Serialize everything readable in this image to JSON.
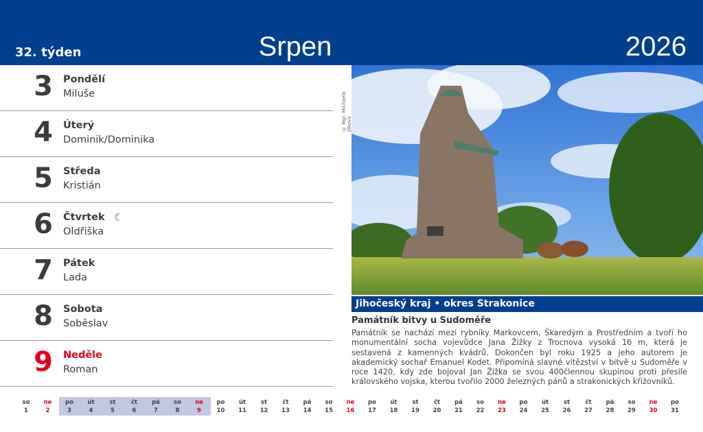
{
  "header": {
    "week": "32. týden",
    "month": "Srpen",
    "year": "2026"
  },
  "days": [
    {
      "num": "3",
      "name": "Pondělí",
      "nameday": "Miluše"
    },
    {
      "num": "4",
      "name": "Úterý",
      "nameday": "Dominik/Dominika"
    },
    {
      "num": "5",
      "name": "Středa",
      "nameday": "Kristián"
    },
    {
      "num": "6",
      "name": "Čtvrtek",
      "nameday": "Oldřiška",
      "moon": "☾"
    },
    {
      "num": "7",
      "name": "Pátek",
      "nameday": "Lada"
    },
    {
      "num": "8",
      "name": "Sobota",
      "nameday": "Soběslav"
    },
    {
      "num": "9",
      "name": "Neděle",
      "nameday": "Roman",
      "holiday": true
    }
  ],
  "photo": {
    "copyright": "© Mgr. Michaela Jílková",
    "caption": "Jihočeský kraj • okres Strakonice"
  },
  "article": {
    "title": "Památník bitvy u Sudoměře",
    "text": "Památník se nachází mezi rybníky Markovcem, Škaredým a Prostředním a tvoří ho monumentální socha vojevůdce Jana Žižky z Trocnova vysoká 16 m, která je sestavená z kamenných kvádrů. Dokončen byl roku 1925 a jeho autorem je akademický sochař Emanuel Kodet. Připomíná slavné vítězství v bitvě u Sudoměře v roce 1420, kdy zde bojoval Jan Žižka se svou 400člennou skupinou proti přesile královského vojska, kterou tvořilo 2000 železných pánů a strakonických křižovníků."
  },
  "month_strip": {
    "weekdays": [
      "so",
      "ne",
      "po",
      "út",
      "st",
      "čt",
      "pá",
      "so",
      "ne",
      "po",
      "út",
      "st",
      "čt",
      "pá",
      "so",
      "ne",
      "po",
      "út",
      "st",
      "čt",
      "pá",
      "so",
      "ne",
      "po",
      "út",
      "st",
      "čt",
      "pá",
      "so",
      "ne",
      "po"
    ],
    "highlight_week": [
      3,
      9
    ]
  },
  "colors": {
    "header": "#003e8e",
    "sunday": "#e3001b",
    "week_highlight": "#c2c7e3"
  }
}
